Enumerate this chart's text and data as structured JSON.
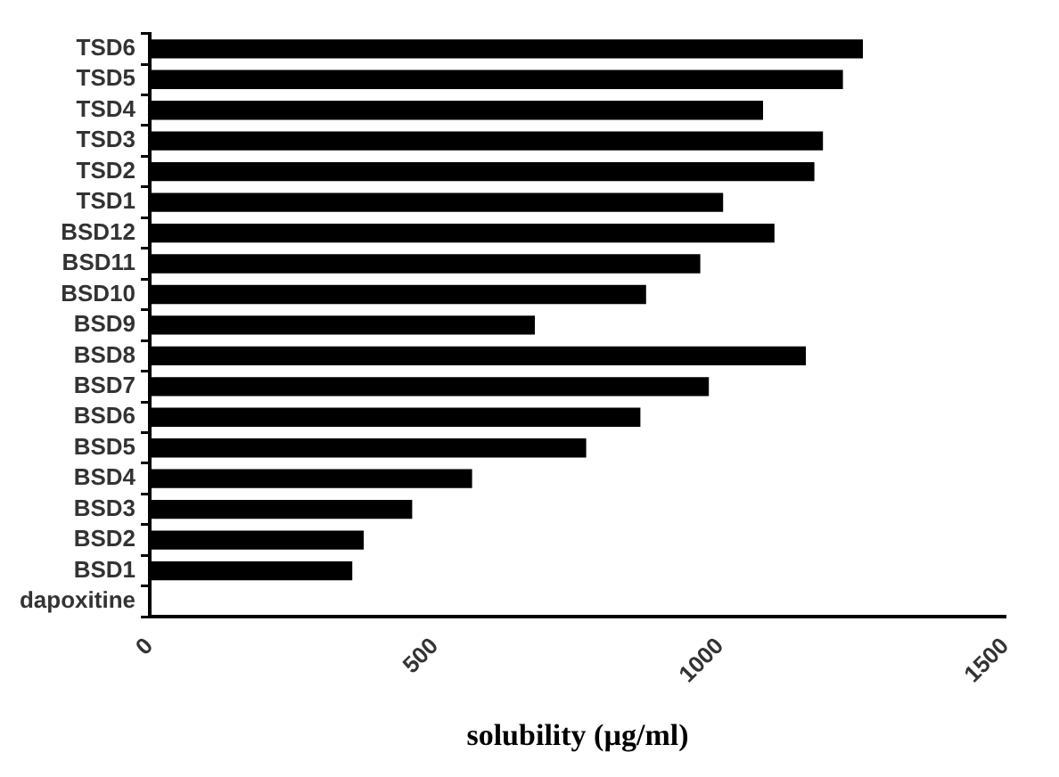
{
  "chart_data": {
    "type": "bar",
    "orientation": "horizontal",
    "xlabel": "solubility (µg/ml)",
    "categories": [
      "TSD6",
      "TSD5",
      "TSD4",
      "TSD3",
      "TSD2",
      "TSD1",
      "BSD12",
      "BSD11",
      "BSD10",
      "BSD9",
      "BSD8",
      "BSD7",
      "BSD6",
      "BSD5",
      "BSD4",
      "BSD3",
      "BSD2",
      "BSD1",
      "dapoxitine"
    ],
    "values": [
      1250,
      1215,
      1075,
      1180,
      1165,
      1005,
      1095,
      965,
      870,
      675,
      1150,
      980,
      860,
      765,
      565,
      460,
      375,
      355,
      0
    ],
    "color": "#000000",
    "xlim": [
      0,
      1500
    ],
    "xticks": [
      0,
      500,
      1000,
      1500
    ],
    "grid": false,
    "legend": false
  }
}
